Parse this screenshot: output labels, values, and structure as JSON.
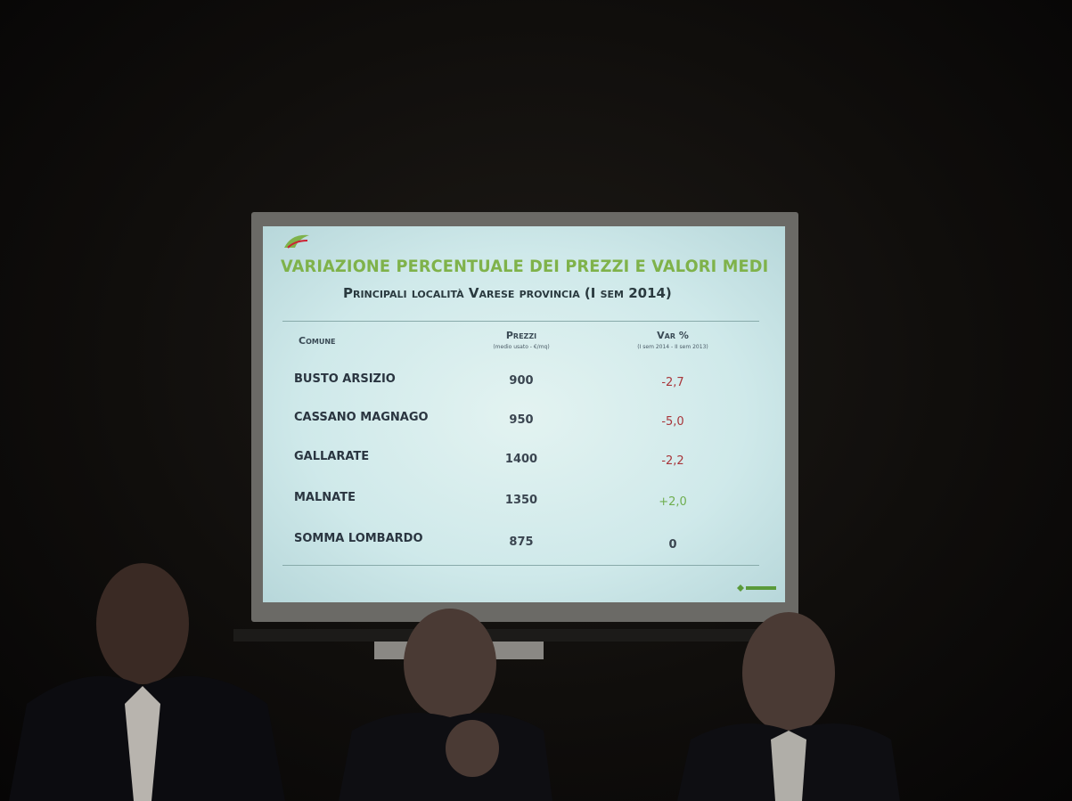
{
  "title": "VARIAZIONE PERCENTUALE DEI PREZZI E VALORI MEDI",
  "subtitle": "Principali località Varese provincia (I sem 2014)",
  "table": {
    "columns": [
      {
        "label": "Comune"
      },
      {
        "label": "Prezzi",
        "note": "(medio usato - €/mq)"
      },
      {
        "label": "Var %",
        "note": "(I sem 2014 - II sem 2013)"
      }
    ],
    "rows": [
      [
        "BUSTO ARSIZIO",
        "900",
        "-2,7"
      ],
      [
        "CASSANO MAGNAGO",
        "950",
        "-5,0"
      ],
      [
        "GALLARATE",
        "1400",
        "-2,2"
      ],
      [
        "MALNATE",
        "1350",
        "+2,0"
      ],
      [
        "SOMMA LOMBARDO",
        "875",
        "0"
      ]
    ]
  }
}
